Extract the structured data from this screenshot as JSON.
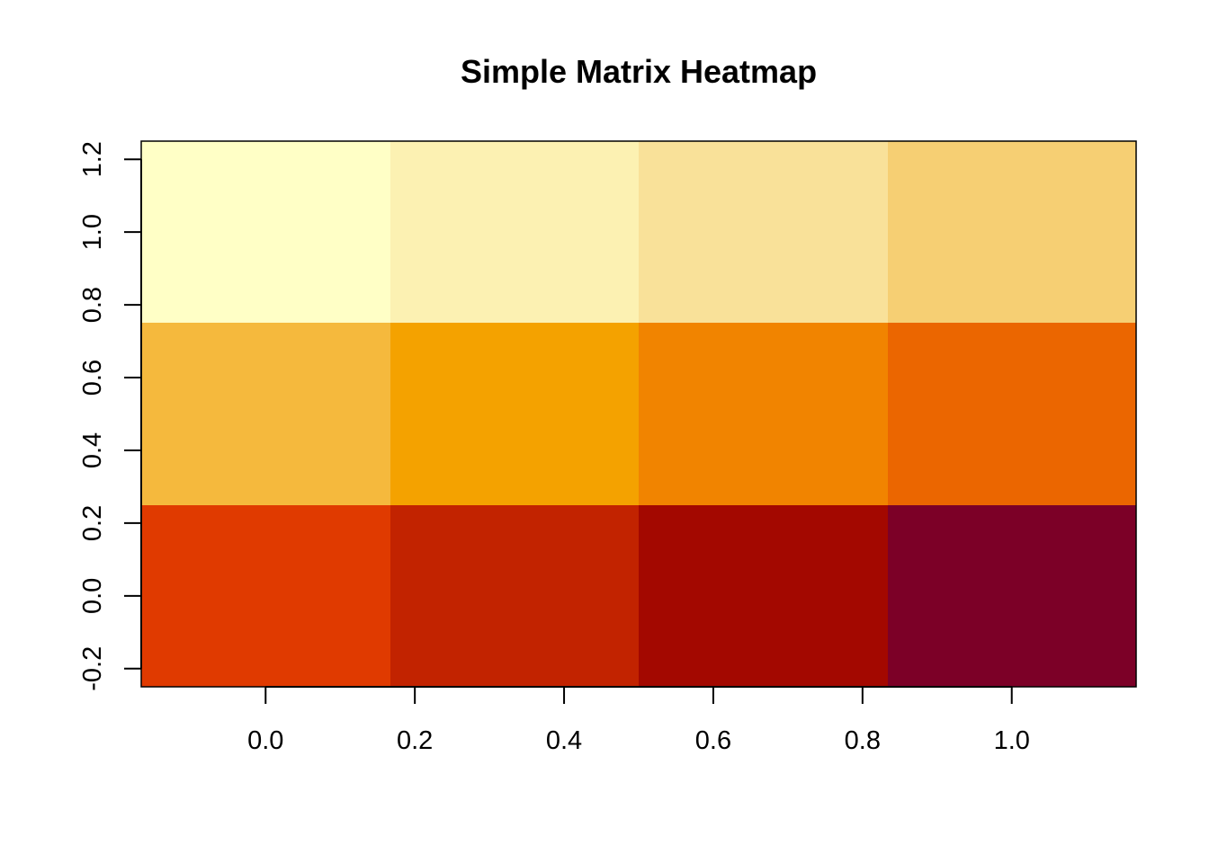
{
  "chart_data": {
    "type": "heatmap",
    "title": "Simple Matrix Heatmap",
    "xlabel": "",
    "ylabel": "",
    "x_ticks": [
      "0.0",
      "0.2",
      "0.4",
      "0.6",
      "0.8",
      "1.0"
    ],
    "x_tick_values": [
      0.0,
      0.2,
      0.4,
      0.6,
      0.8,
      1.0
    ],
    "y_ticks": [
      "-0.2",
      "0.0",
      "0.2",
      "0.4",
      "0.6",
      "0.8",
      "1.0",
      "1.2"
    ],
    "y_tick_values": [
      -0.2,
      0.0,
      0.2,
      0.4,
      0.6,
      0.8,
      1.0,
      1.2
    ],
    "xlim": [
      -0.1667,
      1.1667
    ],
    "ylim": [
      -0.25,
      1.25
    ],
    "n_cols": 4,
    "n_rows": 3,
    "cell_colors": [
      [
        "#E03A00",
        "#C22300",
        "#A30800",
        "#7C0027"
      ],
      [
        "#F5B93D",
        "#F4A200",
        "#F18400",
        "#EB6600"
      ],
      [
        "#FFFFC6",
        "#FCF1B2",
        "#F9E199",
        "#F6CF73"
      ]
    ],
    "color_scale": "heat (dark red = low, pale yellow = high)",
    "grid": false
  }
}
